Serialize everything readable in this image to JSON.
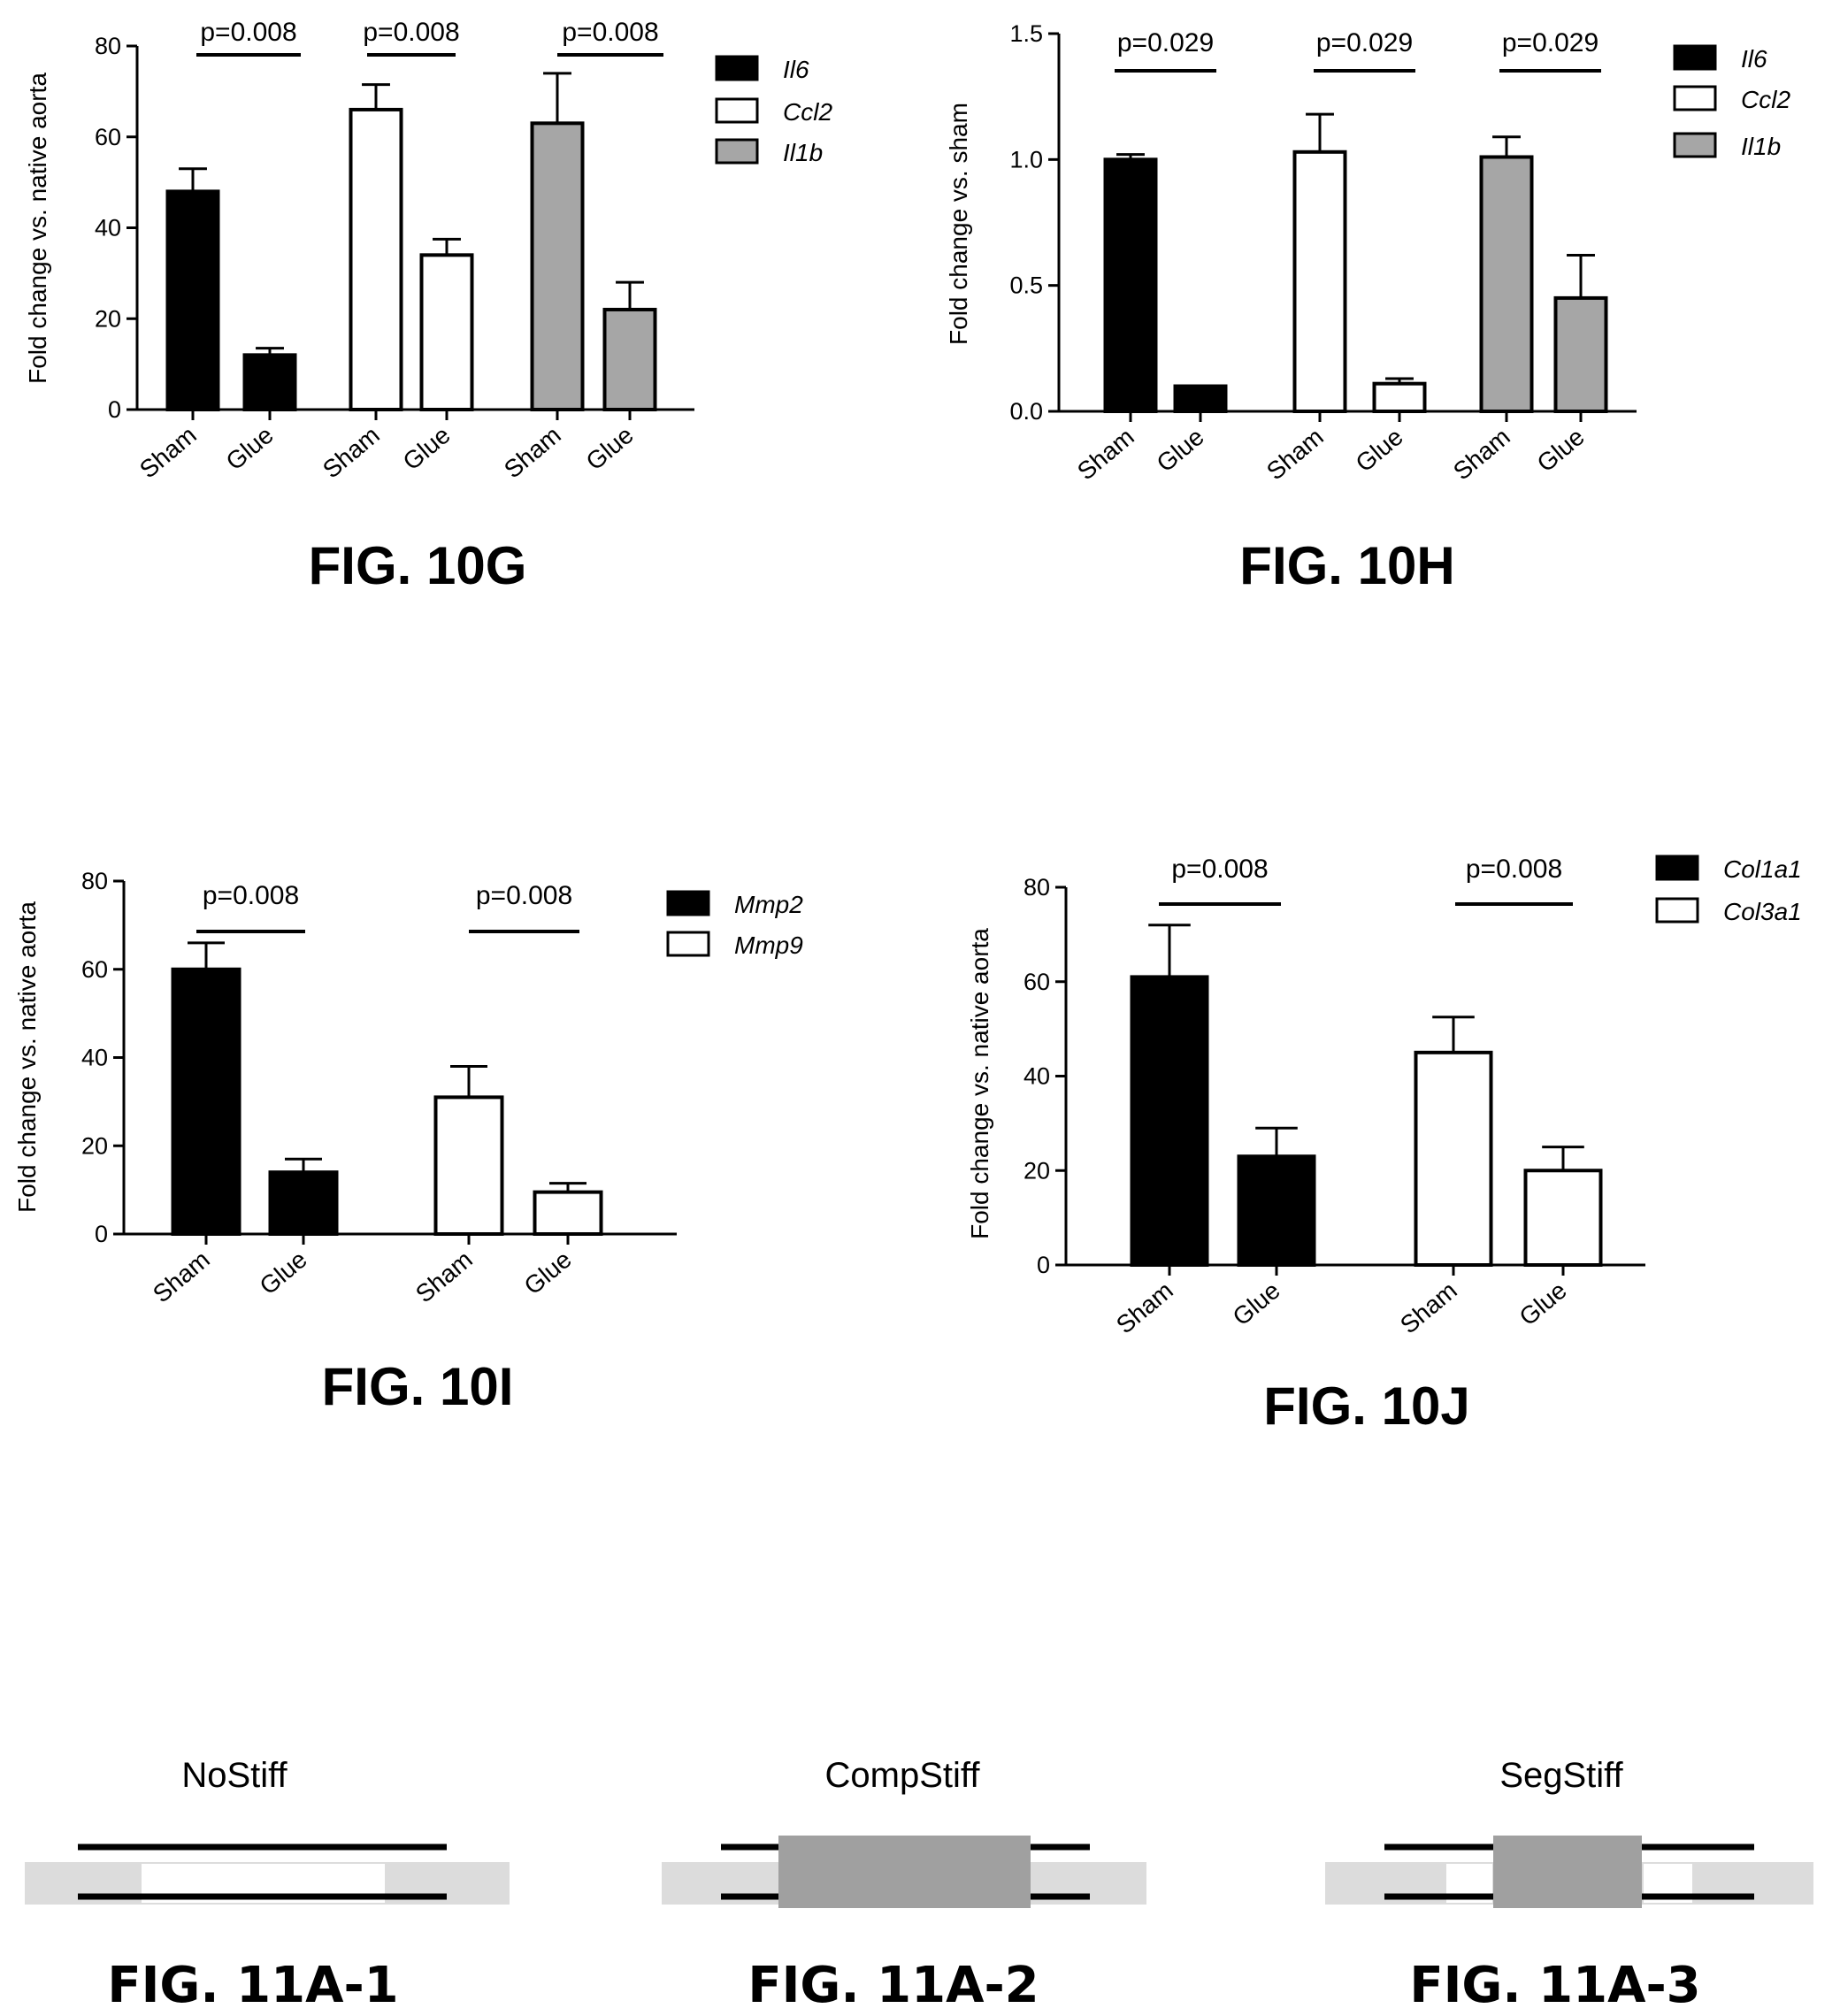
{
  "charts": [
    {
      "figure_label": "FIG. 10G",
      "ylabel": "Fold change vs. native aorta",
      "yticks": [
        "0",
        "20",
        "40",
        "60",
        "80"
      ],
      "groups": [
        {
          "pvalue": "p=0.008",
          "labels": [
            "Sham",
            "Glue"
          ]
        },
        {
          "pvalue": "p=0.008",
          "labels": [
            "Sham",
            "Glue"
          ]
        },
        {
          "pvalue": "p=0.008",
          "labels": [
            "Sham",
            "Glue"
          ]
        }
      ],
      "legend": [
        "Il6",
        "Ccl2",
        "Il1b"
      ]
    },
    {
      "figure_label": "FIG. 10H",
      "ylabel": "Fold change vs. sham",
      "yticks": [
        "0.0",
        "0.5",
        "1.0",
        "1.5"
      ],
      "groups": [
        {
          "pvalue": "p=0.029",
          "labels": [
            "Sham",
            "Glue"
          ]
        },
        {
          "pvalue": "p=0.029",
          "labels": [
            "Sham",
            "Glue"
          ]
        },
        {
          "pvalue": "p=0.029",
          "labels": [
            "Sham",
            "Glue"
          ]
        }
      ],
      "legend": [
        "Il6",
        "Ccl2",
        "Il1b"
      ]
    },
    {
      "figure_label": "FIG. 10I",
      "ylabel": "Fold change vs. native aorta",
      "yticks": [
        "0",
        "20",
        "40",
        "60",
        "80"
      ],
      "groups": [
        {
          "pvalue": "p=0.008",
          "labels": [
            "Sham",
            "Glue"
          ]
        },
        {
          "pvalue": "p=0.008",
          "labels": [
            "Sham",
            "Glue"
          ]
        }
      ],
      "legend": [
        "Mmp2",
        "Mmp9"
      ]
    },
    {
      "figure_label": "FIG. 10J",
      "ylabel": "Fold change vs. native aorta",
      "yticks": [
        "0",
        "20",
        "40",
        "60",
        "80"
      ],
      "groups": [
        {
          "pvalue": "p=0.008",
          "labels": [
            "Sham",
            "Glue"
          ]
        },
        {
          "pvalue": "p=0.008",
          "labels": [
            "Sham",
            "Glue"
          ]
        }
      ],
      "legend": [
        "Col1a1",
        "Col3a1"
      ]
    }
  ],
  "stiffeners": [
    {
      "label": "NoStiff",
      "figure_label": "FIG. 11A-1"
    },
    {
      "label": "CompStiff",
      "figure_label": "FIG. 11A-2"
    },
    {
      "label": "SegStiff",
      "figure_label": "FIG. 11A-3"
    }
  ],
  "colors": {
    "black": "#000000",
    "white": "#ffffff",
    "gray": "#a6a6a6",
    "tube": "#dcdcdc",
    "stiffener": "#a0a0a0"
  },
  "chart_data": [
    {
      "type": "bar",
      "title": "FIG. 10G",
      "ylabel": "Fold change vs. native aorta",
      "ylim": [
        0,
        80
      ],
      "categories": [
        "Sham",
        "Glue"
      ],
      "series": [
        {
          "name": "Il6",
          "values": [
            48,
            12
          ],
          "errors": [
            5,
            1.5
          ],
          "color": "#000000"
        },
        {
          "name": "Ccl2",
          "values": [
            66,
            34
          ],
          "errors": [
            5.5,
            3.5
          ],
          "color": "#ffffff"
        },
        {
          "name": "Il1b",
          "values": [
            63,
            22
          ],
          "errors": [
            11,
            6
          ],
          "color": "#a6a6a6"
        }
      ],
      "pvalues": [
        "p=0.008",
        "p=0.008",
        "p=0.008"
      ],
      "legend_position": "top-right"
    },
    {
      "type": "bar",
      "title": "FIG. 10H",
      "ylabel": "Fold change vs. sham",
      "ylim": [
        0,
        1.5
      ],
      "categories": [
        "Sham",
        "Glue"
      ],
      "series": [
        {
          "name": "Il6",
          "values": [
            1.0,
            0.1
          ],
          "errors": [
            0.02,
            0.0
          ],
          "color": "#000000"
        },
        {
          "name": "Ccl2",
          "values": [
            1.03,
            0.11
          ],
          "errors": [
            0.15,
            0.02
          ],
          "color": "#ffffff"
        },
        {
          "name": "Il1b",
          "values": [
            1.01,
            0.45
          ],
          "errors": [
            0.08,
            0.17
          ],
          "color": "#a6a6a6"
        }
      ],
      "pvalues": [
        "p=0.029",
        "p=0.029",
        "p=0.029"
      ],
      "legend_position": "top-right"
    },
    {
      "type": "bar",
      "title": "FIG. 10I",
      "ylabel": "Fold change vs. native aorta",
      "ylim": [
        0,
        80
      ],
      "categories": [
        "Sham",
        "Glue"
      ],
      "series": [
        {
          "name": "Mmp2",
          "values": [
            60,
            14
          ],
          "errors": [
            6,
            3
          ],
          "color": "#000000"
        },
        {
          "name": "Mmp9",
          "values": [
            31,
            9.5
          ],
          "errors": [
            7,
            2
          ],
          "color": "#ffffff"
        }
      ],
      "pvalues": [
        "p=0.008",
        "p=0.008"
      ],
      "legend_position": "top-right"
    },
    {
      "type": "bar",
      "title": "FIG. 10J",
      "ylabel": "Fold change vs. native aorta",
      "ylim": [
        0,
        80
      ],
      "categories": [
        "Sham",
        "Glue"
      ],
      "series": [
        {
          "name": "Col1a1",
          "values": [
            61,
            23
          ],
          "errors": [
            11,
            6
          ],
          "color": "#000000"
        },
        {
          "name": "Col3a1",
          "values": [
            45,
            20
          ],
          "errors": [
            7.5,
            5
          ],
          "color": "#ffffff"
        }
      ],
      "pvalues": [
        "p=0.008",
        "p=0.008"
      ],
      "legend_position": "top-right"
    }
  ]
}
